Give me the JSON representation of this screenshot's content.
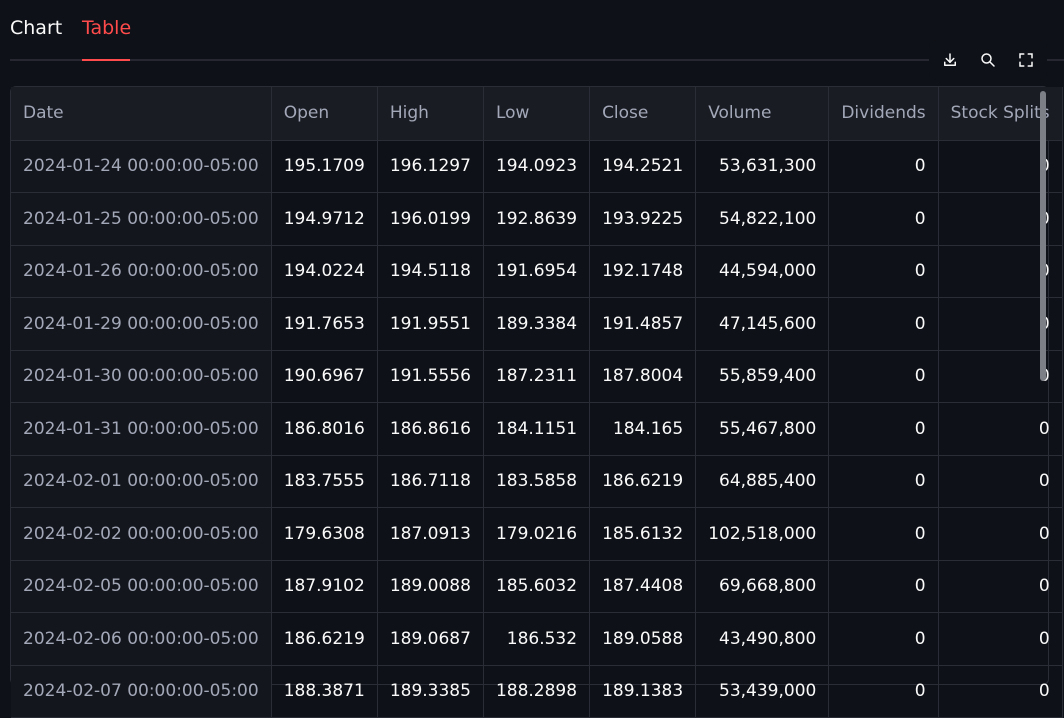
{
  "tabs": [
    {
      "label": "Chart"
    },
    {
      "label": "Table"
    }
  ],
  "toolbar": {
    "icons": [
      "download-icon",
      "search-icon",
      "fullscreen-icon"
    ]
  },
  "table": {
    "columns": [
      "Date",
      "Open",
      "High",
      "Low",
      "Close",
      "Volume",
      "Dividends",
      "Stock Splits"
    ],
    "rows": [
      [
        "2024-01-24 00:00:00-05:00",
        "195.1709",
        "196.1297",
        "194.0923",
        "194.2521",
        "53,631,300",
        "0",
        "0"
      ],
      [
        "2024-01-25 00:00:00-05:00",
        "194.9712",
        "196.0199",
        "192.8639",
        "193.9225",
        "54,822,100",
        "0",
        "0"
      ],
      [
        "2024-01-26 00:00:00-05:00",
        "194.0224",
        "194.5118",
        "191.6954",
        "192.1748",
        "44,594,000",
        "0",
        "0"
      ],
      [
        "2024-01-29 00:00:00-05:00",
        "191.7653",
        "191.9551",
        "189.3384",
        "191.4857",
        "47,145,600",
        "0",
        "0"
      ],
      [
        "2024-01-30 00:00:00-05:00",
        "190.6967",
        "191.5556",
        "187.2311",
        "187.8004",
        "55,859,400",
        "0",
        "0"
      ],
      [
        "2024-01-31 00:00:00-05:00",
        "186.8016",
        "186.8616",
        "184.1151",
        "184.165",
        "55,467,800",
        "0",
        "0"
      ],
      [
        "2024-02-01 00:00:00-05:00",
        "183.7555",
        "186.7118",
        "183.5858",
        "186.6219",
        "64,885,400",
        "0",
        "0"
      ],
      [
        "2024-02-02 00:00:00-05:00",
        "179.6308",
        "187.0913",
        "179.0216",
        "185.6132",
        "102,518,000",
        "0",
        "0"
      ],
      [
        "2024-02-05 00:00:00-05:00",
        "187.9102",
        "189.0088",
        "185.6032",
        "187.4408",
        "69,668,800",
        "0",
        "0"
      ],
      [
        "2024-02-06 00:00:00-05:00",
        "186.6219",
        "189.0687",
        "186.532",
        "189.0588",
        "43,490,800",
        "0",
        "0"
      ],
      [
        "2024-02-07 00:00:00-05:00",
        "188.3871",
        "189.3385",
        "188.2898",
        "189.1383",
        "53,439,000",
        "0",
        "0"
      ]
    ]
  }
}
